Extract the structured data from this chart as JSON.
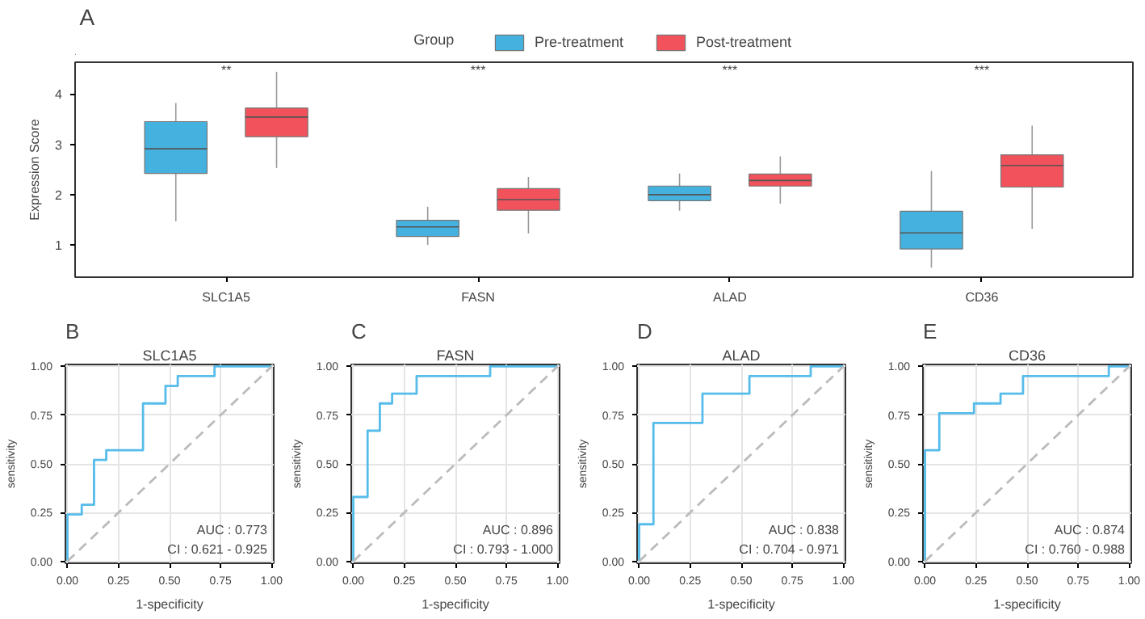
{
  "chart_data": [
    {
      "type": "box",
      "title": null,
      "ylabel": "Expression Score",
      "legend_title": "Group",
      "legend": "top",
      "grid": false,
      "categories": [
        "SLC1A5",
        "FASN",
        "ALAD",
        "CD36"
      ],
      "ylim": [
        0.36,
        4.63
      ],
      "yticks": [
        1,
        2,
        3,
        4
      ],
      "series": [
        {
          "name": "Pre-treatment",
          "color": "#45B1DE",
          "boxes": [
            {
              "low": 1.47,
              "q1": 2.42,
              "median": 2.91,
              "q3": 3.45,
              "high": 3.82
            },
            {
              "low": 1.0,
              "q1": 1.17,
              "median": 1.36,
              "q3": 1.49,
              "high": 1.76
            },
            {
              "low": 1.68,
              "q1": 1.88,
              "median": 2.0,
              "q3": 2.17,
              "high": 2.42
            },
            {
              "low": 0.55,
              "q1": 0.92,
              "median": 1.24,
              "q3": 1.67,
              "high": 2.47
            }
          ]
        },
        {
          "name": "Post-treatment",
          "color": "#F2525C",
          "boxes": [
            {
              "low": 2.53,
              "q1": 3.15,
              "median": 3.54,
              "q3": 3.72,
              "high": 4.44
            },
            {
              "low": 1.23,
              "q1": 1.69,
              "median": 1.9,
              "q3": 2.12,
              "high": 2.35
            },
            {
              "low": 1.82,
              "q1": 2.17,
              "median": 2.28,
              "q3": 2.41,
              "high": 2.76
            },
            {
              "low": 1.32,
              "q1": 2.15,
              "median": 2.58,
              "q3": 2.79,
              "high": 3.37
            }
          ]
        }
      ],
      "annotations": [
        "A",
        "**",
        "***",
        "***",
        "***"
      ]
    },
    {
      "type": "line",
      "title": "SLC1A5",
      "xlabel": "1-specificity",
      "ylabel": "sensitivity",
      "grid": true,
      "xlim": [
        -0.01,
        1.01
      ],
      "ylim": [
        -0.01,
        1.01
      ],
      "xticks": [
        {
          "value": 0,
          "label": "0.00"
        },
        {
          "value": 0.25,
          "label": "0.25"
        },
        {
          "value": 0.5,
          "label": "0.50"
        },
        {
          "value": 0.75,
          "label": "0.75"
        },
        {
          "value": 1,
          "label": "1.00"
        }
      ],
      "yticks": [
        {
          "value": 0,
          "label": "0.00"
        },
        {
          "value": 0.25,
          "label": "0.25"
        },
        {
          "value": 0.5,
          "label": "0.50"
        },
        {
          "value": 0.75,
          "label": "0.75"
        },
        {
          "value": 1,
          "label": "1.00"
        }
      ],
      "series": [
        {
          "color": "#56BCEA",
          "x": [
            0,
            0,
            0.07,
            0.07,
            0.13,
            0.13,
            0.19,
            0.19,
            0.37,
            0.37,
            0.48,
            0.48,
            0.54,
            0.54,
            0.72,
            0.72,
            1
          ],
          "values": [
            0,
            0.24,
            0.24,
            0.29,
            0.29,
            0.52,
            0.52,
            0.57,
            0.57,
            0.81,
            0.81,
            0.9,
            0.9,
            0.95,
            0.95,
            1,
            1
          ]
        },
        {
          "color": "#BBBBBB",
          "line_style": "dashed",
          "x": [
            0,
            1
          ],
          "values": [
            0,
            1
          ]
        }
      ],
      "annotations": [
        "B",
        "AUC : 0.773",
        "CI : 0.621 - 0.925"
      ]
    },
    {
      "type": "line",
      "title": "FASN",
      "xlabel": "1-specificity",
      "ylabel": "sensitivity",
      "grid": true,
      "xlim": [
        -0.01,
        1.01
      ],
      "ylim": [
        -0.01,
        1.01
      ],
      "xticks": [
        {
          "value": 0,
          "label": "0.00"
        },
        {
          "value": 0.25,
          "label": "0.25"
        },
        {
          "value": 0.5,
          "label": "0.50"
        },
        {
          "value": 0.75,
          "label": "0.75"
        },
        {
          "value": 1,
          "label": "1.00"
        }
      ],
      "yticks": [
        {
          "value": 0,
          "label": "0.00"
        },
        {
          "value": 0.25,
          "label": "0.25"
        },
        {
          "value": 0.5,
          "label": "0.50"
        },
        {
          "value": 0.75,
          "label": "0.75"
        },
        {
          "value": 1,
          "label": "1.00"
        }
      ],
      "series": [
        {
          "color": "#56BCEA",
          "x": [
            0,
            0,
            0.07,
            0.07,
            0.13,
            0.13,
            0.19,
            0.19,
            0.31,
            0.31,
            0.67,
            0.67,
            1
          ],
          "values": [
            0,
            0.33,
            0.33,
            0.67,
            0.67,
            0.81,
            0.81,
            0.86,
            0.86,
            0.95,
            0.95,
            1,
            1
          ]
        },
        {
          "color": "#BBBBBB",
          "line_style": "dashed",
          "x": [
            0,
            1
          ],
          "values": [
            0,
            1
          ]
        }
      ],
      "annotations": [
        "C",
        "AUC : 0.896",
        "CI : 0.793 - 1.000"
      ]
    },
    {
      "type": "line",
      "title": "ALAD",
      "xlabel": "1-specificity",
      "ylabel": "sensitivity",
      "grid": true,
      "xlim": [
        -0.01,
        1.01
      ],
      "ylim": [
        -0.01,
        1.01
      ],
      "xticks": [
        {
          "value": 0,
          "label": "0.00"
        },
        {
          "value": 0.25,
          "label": "0.25"
        },
        {
          "value": 0.5,
          "label": "0.50"
        },
        {
          "value": 0.75,
          "label": "0.75"
        },
        {
          "value": 1,
          "label": "1.00"
        }
      ],
      "yticks": [
        {
          "value": 0,
          "label": "0.00"
        },
        {
          "value": 0.25,
          "label": "0.25"
        },
        {
          "value": 0.5,
          "label": "0.50"
        },
        {
          "value": 0.75,
          "label": "0.75"
        },
        {
          "value": 1,
          "label": "1.00"
        }
      ],
      "series": [
        {
          "color": "#56BCEA",
          "x": [
            0,
            0,
            0.07,
            0.07,
            0.31,
            0.31,
            0.54,
            0.54,
            0.84,
            0.84,
            1
          ],
          "values": [
            0,
            0.19,
            0.19,
            0.71,
            0.71,
            0.86,
            0.86,
            0.95,
            0.95,
            1,
            1
          ]
        },
        {
          "color": "#BBBBBB",
          "line_style": "dashed",
          "x": [
            0,
            1
          ],
          "values": [
            0,
            1
          ]
        }
      ],
      "annotations": [
        "D",
        "AUC : 0.838",
        "CI : 0.704 - 0.971"
      ]
    },
    {
      "type": "line",
      "title": "CD36",
      "xlabel": "1-specificity",
      "ylabel": "sensitivity",
      "grid": true,
      "xlim": [
        -0.01,
        1.01
      ],
      "ylim": [
        -0.01,
        1.01
      ],
      "xticks": [
        {
          "value": 0,
          "label": "0.00"
        },
        {
          "value": 0.25,
          "label": "0.25"
        },
        {
          "value": 0.5,
          "label": "0.50"
        },
        {
          "value": 0.75,
          "label": "0.75"
        },
        {
          "value": 1,
          "label": "1.00"
        }
      ],
      "yticks": [
        {
          "value": 0,
          "label": "0.00"
        },
        {
          "value": 0.25,
          "label": "0.25"
        },
        {
          "value": 0.5,
          "label": "0.50"
        },
        {
          "value": 0.75,
          "label": "0.75"
        },
        {
          "value": 1,
          "label": "1.00"
        }
      ],
      "series": [
        {
          "color": "#56BCEA",
          "x": [
            0,
            0,
            0.07,
            0.07,
            0.24,
            0.24,
            0.37,
            0.37,
            0.48,
            0.48,
            0.9,
            0.9,
            1
          ],
          "values": [
            0,
            0.57,
            0.57,
            0.76,
            0.76,
            0.81,
            0.81,
            0.86,
            0.86,
            0.95,
            0.95,
            1,
            1
          ]
        },
        {
          "color": "#BBBBBB",
          "line_style": "dashed",
          "x": [
            0,
            1
          ],
          "values": [
            0,
            1
          ]
        }
      ],
      "annotations": [
        "E",
        "AUC : 0.874",
        "CI : 0.760 - 0.988"
      ]
    }
  ]
}
